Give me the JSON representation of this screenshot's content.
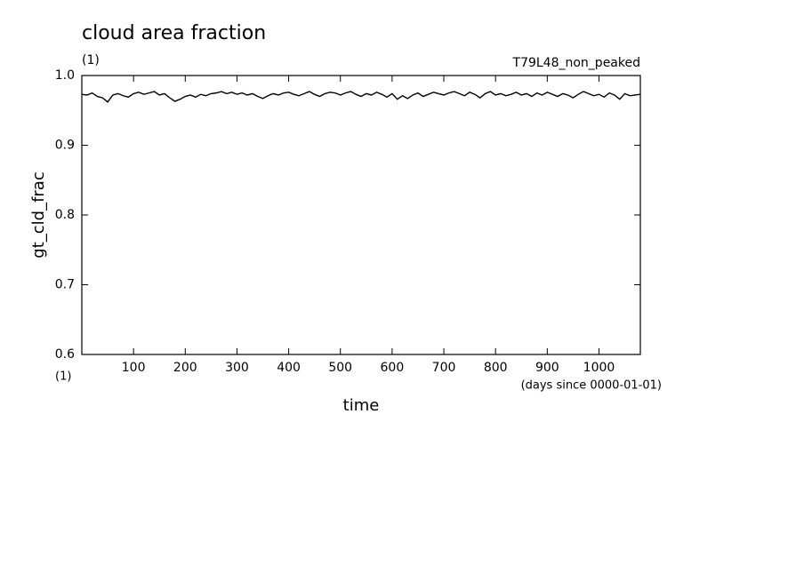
{
  "chart_data": {
    "type": "line",
    "title": "cloud area fraction",
    "subtitle": "(1)",
    "experiment": "T79L48_non_peaked",
    "y_label": "gt_cld_frac",
    "x_label": "time",
    "x_unit_label": "(days since 0000-01-01)",
    "x_origin_label": "(1)",
    "color": "#000000",
    "xlim": [
      0,
      1080
    ],
    "ylim": [
      0.6,
      1
    ],
    "xticks": [
      100,
      200,
      300,
      400,
      500,
      600,
      700,
      800,
      900,
      1000
    ],
    "yticks": [
      {
        "value": 0.6,
        "label": "0.6"
      },
      0.7,
      0.8,
      0.9,
      {
        "value": 1,
        "label": "1.0"
      }
    ],
    "x": [
      0,
      10,
      20,
      30,
      40,
      50,
      60,
      70,
      80,
      90,
      100,
      110,
      120,
      130,
      140,
      150,
      160,
      170,
      180,
      190,
      200,
      210,
      220,
      230,
      240,
      250,
      260,
      270,
      280,
      290,
      300,
      310,
      320,
      330,
      340,
      350,
      360,
      370,
      380,
      390,
      400,
      410,
      420,
      430,
      440,
      450,
      460,
      470,
      480,
      490,
      500,
      510,
      520,
      530,
      540,
      550,
      560,
      570,
      580,
      590,
      600,
      610,
      620,
      630,
      640,
      650,
      660,
      670,
      680,
      690,
      700,
      710,
      720,
      730,
      740,
      750,
      760,
      770,
      780,
      790,
      800,
      810,
      820,
      830,
      840,
      850,
      860,
      870,
      880,
      890,
      900,
      910,
      920,
      930,
      940,
      950,
      960,
      970,
      980,
      990,
      1000,
      1010,
      1020,
      1030,
      1040,
      1050,
      1060,
      1070,
      1080
    ],
    "values": [
      0.973,
      0.972,
      0.975,
      0.97,
      0.968,
      0.962,
      0.972,
      0.974,
      0.971,
      0.969,
      0.974,
      0.976,
      0.973,
      0.975,
      0.977,
      0.972,
      0.974,
      0.968,
      0.963,
      0.966,
      0.97,
      0.972,
      0.969,
      0.973,
      0.971,
      0.974,
      0.975,
      0.977,
      0.974,
      0.976,
      0.973,
      0.975,
      0.972,
      0.974,
      0.97,
      0.967,
      0.971,
      0.974,
      0.972,
      0.975,
      0.976,
      0.973,
      0.971,
      0.974,
      0.977,
      0.973,
      0.97,
      0.974,
      0.976,
      0.975,
      0.972,
      0.975,
      0.977,
      0.973,
      0.97,
      0.974,
      0.972,
      0.976,
      0.973,
      0.969,
      0.974,
      0.966,
      0.971,
      0.967,
      0.972,
      0.975,
      0.97,
      0.973,
      0.976,
      0.974,
      0.972,
      0.975,
      0.977,
      0.974,
      0.971,
      0.976,
      0.973,
      0.968,
      0.974,
      0.977,
      0.972,
      0.974,
      0.971,
      0.973,
      0.976,
      0.972,
      0.974,
      0.97,
      0.975,
      0.972,
      0.976,
      0.973,
      0.97,
      0.974,
      0.972,
      0.968,
      0.973,
      0.977,
      0.974,
      0.971,
      0.973,
      0.969,
      0.975,
      0.972,
      0.966,
      0.974,
      0.971,
      0.972,
      0.973
    ]
  }
}
